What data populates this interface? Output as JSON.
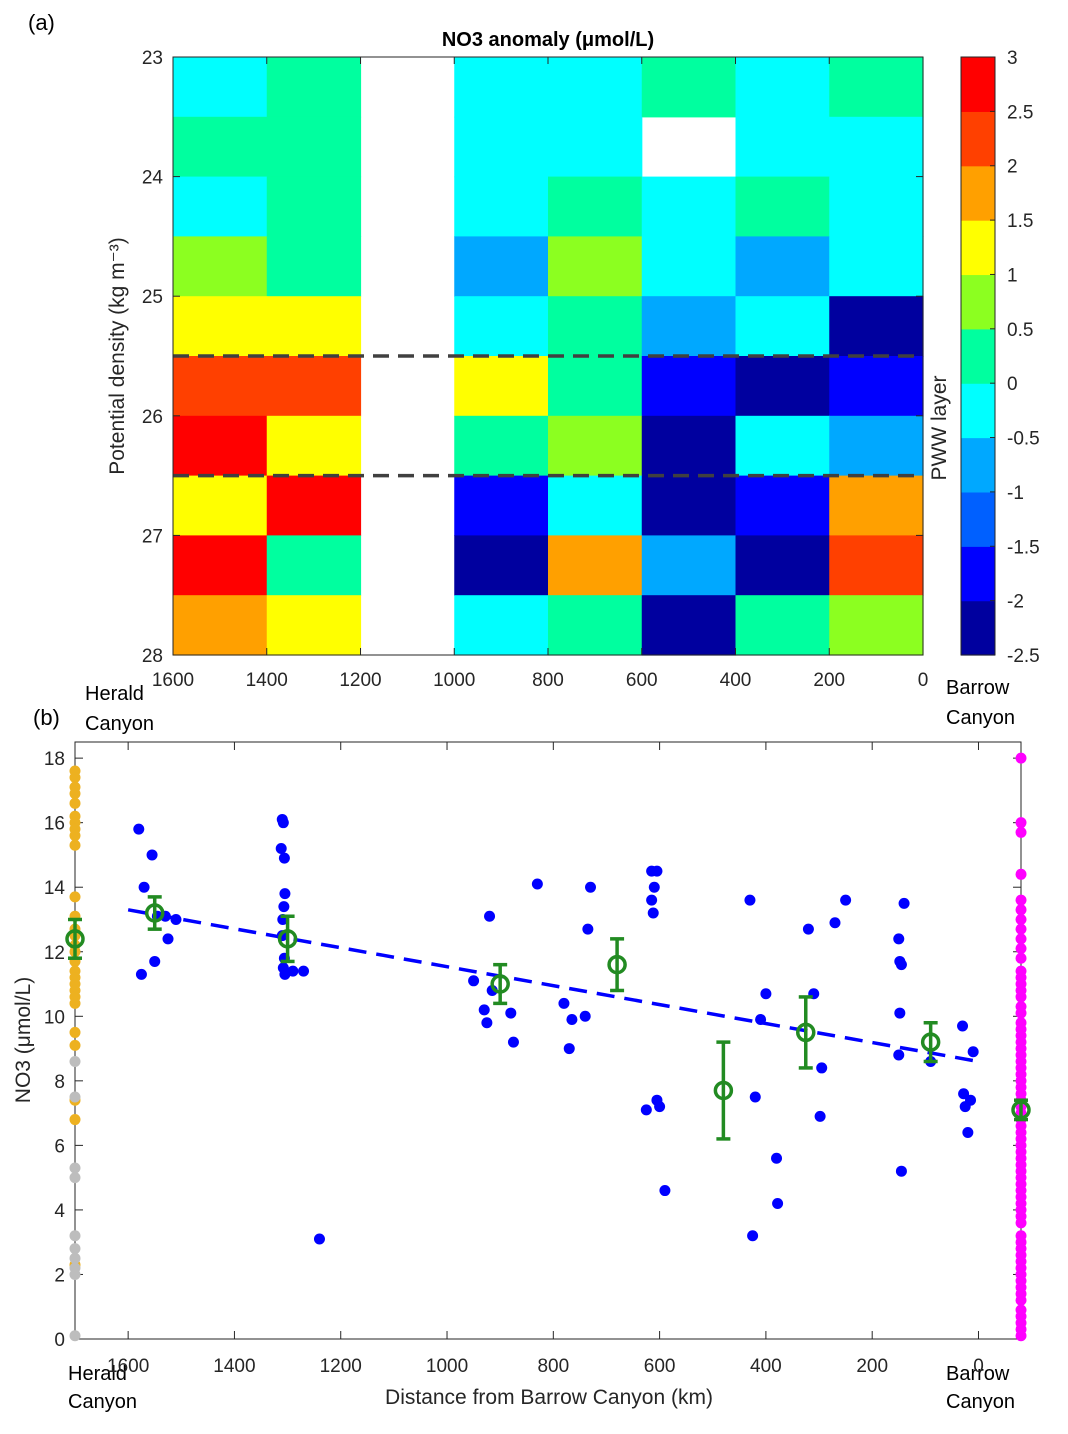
{
  "figure": {
    "panel_a_label": "(a)",
    "panel_b_label": "(b)",
    "herald": [
      "Herald",
      "Canyon"
    ],
    "barrow": [
      "Barrow",
      "Canyon"
    ]
  },
  "chart_data": [
    {
      "type": "heatmap",
      "title": "NO3 anomaly (μmol/L)",
      "ylabel": "Potential density (kg m⁻³)",
      "xlabel": "",
      "x_ticks": [
        1600,
        1400,
        1200,
        1000,
        800,
        600,
        400,
        200,
        0
      ],
      "y_ticks": [
        23,
        24,
        25,
        26,
        27,
        28
      ],
      "xlim": [
        1600,
        0
      ],
      "ylim": [
        23,
        28
      ],
      "x_bin_edges": [
        1600,
        1400,
        1200,
        1000,
        800,
        600,
        400,
        200,
        0
      ],
      "y_bin_edges": [
        23,
        23.5,
        24,
        24.5,
        25,
        25.5,
        26,
        26.5,
        27,
        27.5,
        28
      ],
      "colorbar": {
        "label": "PWW layer",
        "ticks": [
          3,
          2.5,
          2,
          1.5,
          1,
          0.5,
          0,
          -0.5,
          -1,
          -1.5,
          -2,
          -2.5
        ],
        "range": [
          -2.5,
          3
        ],
        "colors": [
          "#00009f",
          "#0000ff",
          "#0060ff",
          "#00a8ff",
          "#00ffff",
          "#00ff9f",
          "#8cff20",
          "#ffff00",
          "#ffa000",
          "#ff4000",
          "#ff0000"
        ]
      },
      "dashed_lines_y": [
        25.5,
        26.5
      ],
      "values": [
        [
          -0.25,
          0.25,
          null,
          -0.25,
          -0.25,
          0.25,
          -0.25,
          0.25
        ],
        [
          0.25,
          0.25,
          null,
          -0.25,
          -0.25,
          null,
          -0.25,
          -0.25
        ],
        [
          -0.25,
          0.25,
          null,
          -0.25,
          0.25,
          -0.25,
          0.25,
          -0.25
        ],
        [
          0.75,
          0.25,
          null,
          -0.75,
          0.75,
          -0.25,
          -0.75,
          -0.25
        ],
        [
          1.25,
          1.25,
          null,
          -0.25,
          0.25,
          -0.75,
          -0.25,
          -2.25
        ],
        [
          2.25,
          2.25,
          null,
          1.25,
          0.25,
          -1.75,
          -2.25,
          -1.75
        ],
        [
          2.75,
          1.25,
          null,
          0.25,
          0.75,
          -2.25,
          -0.25,
          -0.75
        ],
        [
          1.25,
          2.75,
          null,
          -1.75,
          -0.25,
          -2.25,
          -1.75,
          1.75
        ],
        [
          2.75,
          0.25,
          null,
          -2.25,
          1.75,
          -0.75,
          -2.25,
          2.25
        ],
        [
          1.75,
          1.25,
          null,
          -0.25,
          0.25,
          -2.25,
          0.25,
          0.75
        ]
      ]
    },
    {
      "type": "scatter",
      "xlabel": "Distance from Barrow Canyon (km)",
      "ylabel": "NO3 (μmol/L)",
      "xlim": [
        1700,
        -80
      ],
      "ylim": [
        0,
        18.5
      ],
      "x_ticks": [
        1600,
        1400,
        1200,
        1000,
        800,
        600,
        400,
        200,
        0
      ],
      "y_ticks": [
        0,
        2,
        4,
        6,
        8,
        10,
        12,
        14,
        16,
        18
      ],
      "series": [
        {
          "color": "#edb120",
          "x_fixed": 1700,
          "y": [
            17.6,
            17.4,
            17.1,
            16.9,
            16.6,
            16.2,
            16.0,
            15.8,
            15.6,
            15.3,
            13.7,
            13.1,
            12.7,
            12.5,
            12.2,
            12.0,
            11.7,
            11.4,
            11.2,
            11.0,
            10.8,
            10.6,
            10.4,
            9.5,
            9.1,
            7.4,
            6.8,
            2.3
          ]
        },
        {
          "color": "#bdbdbd",
          "x_fixed": 1700,
          "y": [
            8.6,
            7.5,
            5.3,
            5.0,
            3.2,
            2.8,
            2.5,
            2.2,
            2.0,
            0.1
          ]
        },
        {
          "color": "#ff00ff",
          "x_fixed": -80,
          "y": [
            18.0,
            16.0,
            15.7,
            14.4,
            13.6,
            13.3,
            13.0,
            12.7,
            12.4,
            12.1,
            11.8,
            11.4,
            11.2,
            11.0,
            10.8,
            10.6,
            10.3,
            10.1,
            9.8,
            9.6,
            9.4,
            9.2,
            9.0,
            8.8,
            8.6,
            8.4,
            8.2,
            8.0,
            7.8,
            7.6,
            7.4,
            7.2,
            7.0,
            6.8,
            6.6,
            6.4,
            6.2,
            6.0,
            5.8,
            5.6,
            5.4,
            5.2,
            5.0,
            4.8,
            4.6,
            4.4,
            4.2,
            4.0,
            3.8,
            3.6,
            3.2,
            3.0,
            2.8,
            2.6,
            2.4,
            2.2,
            2.0,
            1.8,
            1.6,
            1.4,
            1.2,
            0.9,
            0.7,
            0.5,
            0.3,
            0.1
          ]
        },
        {
          "color": "#0000ff",
          "points": [
            [
              1580,
              15.8
            ],
            [
              1570,
              14.0
            ],
            [
              1575,
              11.3
            ],
            [
              1555,
              15.0
            ],
            [
              1550,
              11.7
            ],
            [
              1545,
              13.1
            ],
            [
              1530,
              13.1
            ],
            [
              1525,
              12.4
            ],
            [
              1510,
              13.0
            ],
            [
              1310,
              16.1
            ],
            [
              1308,
              16.0
            ],
            [
              1312,
              15.2
            ],
            [
              1306,
              14.9
            ],
            [
              1305,
              13.8
            ],
            [
              1307,
              13.4
            ],
            [
              1309,
              13.0
            ],
            [
              1310,
              12.5
            ],
            [
              1306,
              11.8
            ],
            [
              1308,
              11.5
            ],
            [
              1305,
              11.3
            ],
            [
              1290,
              11.4
            ],
            [
              1270,
              11.4
            ],
            [
              1240,
              3.1
            ],
            [
              950,
              11.1
            ],
            [
              930,
              10.2
            ],
            [
              920,
              13.1
            ],
            [
              915,
              10.8
            ],
            [
              925,
              9.8
            ],
            [
              880,
              10.1
            ],
            [
              875,
              9.2
            ],
            [
              830,
              14.1
            ],
            [
              780,
              10.4
            ],
            [
              770,
              9.0
            ],
            [
              765,
              9.9
            ],
            [
              740,
              10.0
            ],
            [
              730,
              14.0
            ],
            [
              735,
              12.7
            ],
            [
              615,
              14.5
            ],
            [
              605,
              14.5
            ],
            [
              610,
              14.0
            ],
            [
              615,
              13.6
            ],
            [
              612,
              13.2
            ],
            [
              605,
              7.4
            ],
            [
              600,
              7.2
            ],
            [
              625,
              7.1
            ],
            [
              590,
              4.6
            ],
            [
              430,
              13.6
            ],
            [
              420,
              7.5
            ],
            [
              425,
              3.2
            ],
            [
              410,
              9.9
            ],
            [
              400,
              10.7
            ],
            [
              380,
              5.6
            ],
            [
              378,
              4.2
            ],
            [
              320,
              12.7
            ],
            [
              310,
              10.7
            ],
            [
              295,
              8.4
            ],
            [
              298,
              6.9
            ],
            [
              270,
              12.9
            ],
            [
              250,
              13.6
            ],
            [
              150,
              12.4
            ],
            [
              148,
              11.7
            ],
            [
              145,
              11.6
            ],
            [
              140,
              13.5
            ],
            [
              148,
              10.1
            ],
            [
              150,
              8.8
            ],
            [
              145,
              5.2
            ],
            [
              90,
              8.6
            ],
            [
              30,
              9.7
            ],
            [
              28,
              7.6
            ],
            [
              25,
              7.2
            ],
            [
              20,
              6.4
            ],
            [
              15,
              7.4
            ],
            [
              10,
              8.9
            ]
          ]
        },
        {
          "type": "errorbar",
          "color": "#228b22",
          "points": [
            [
              1700,
              12.4,
              0.6
            ],
            [
              1550,
              13.2,
              0.5
            ],
            [
              1300,
              12.4,
              0.7
            ],
            [
              900,
              11.0,
              0.6
            ],
            [
              680,
              11.6,
              0.8
            ],
            [
              480,
              7.7,
              1.5
            ],
            [
              325,
              9.5,
              1.1
            ],
            [
              90,
              9.2,
              0.6
            ],
            [
              -80,
              7.1,
              0.3
            ]
          ]
        },
        {
          "type": "line",
          "style": "dashed",
          "color": "#0000ff",
          "x": [
            1600,
            0
          ],
          "y": [
            13.3,
            8.6
          ]
        }
      ]
    }
  ]
}
